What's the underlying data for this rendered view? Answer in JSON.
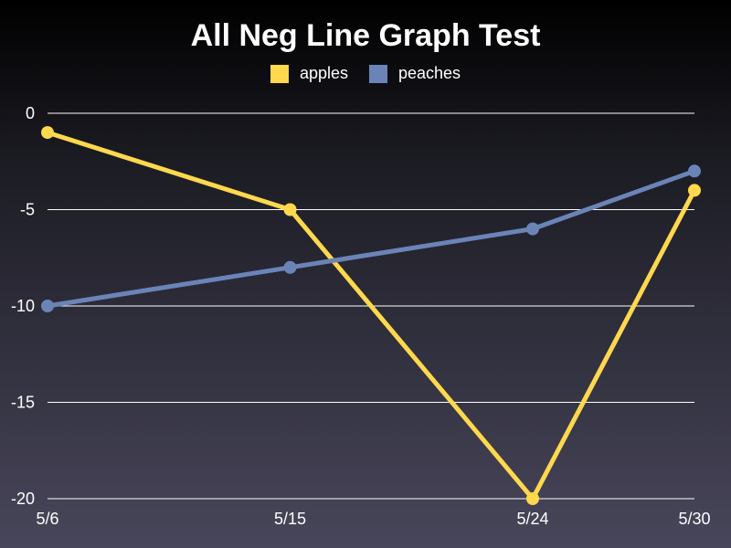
{
  "chart_data": {
    "type": "line",
    "title": "All Neg Line Graph Test",
    "categories": [
      "5/6",
      "5/15",
      "5/24",
      "5/30"
    ],
    "x": [
      6,
      15,
      24,
      30
    ],
    "series": [
      {
        "name": "apples",
        "values": [
          -1,
          -5,
          -20,
          -4
        ],
        "color": "#ffd84d"
      },
      {
        "name": "peaches",
        "values": [
          -10,
          -8,
          -6,
          -3
        ],
        "color": "#6b84b8"
      }
    ],
    "ylim": [
      -20,
      0
    ],
    "yticks": [
      0,
      -5,
      -10,
      -15,
      -20
    ],
    "xlabel": "",
    "ylabel": "",
    "grid": "horizontal",
    "legend": "top-center"
  }
}
